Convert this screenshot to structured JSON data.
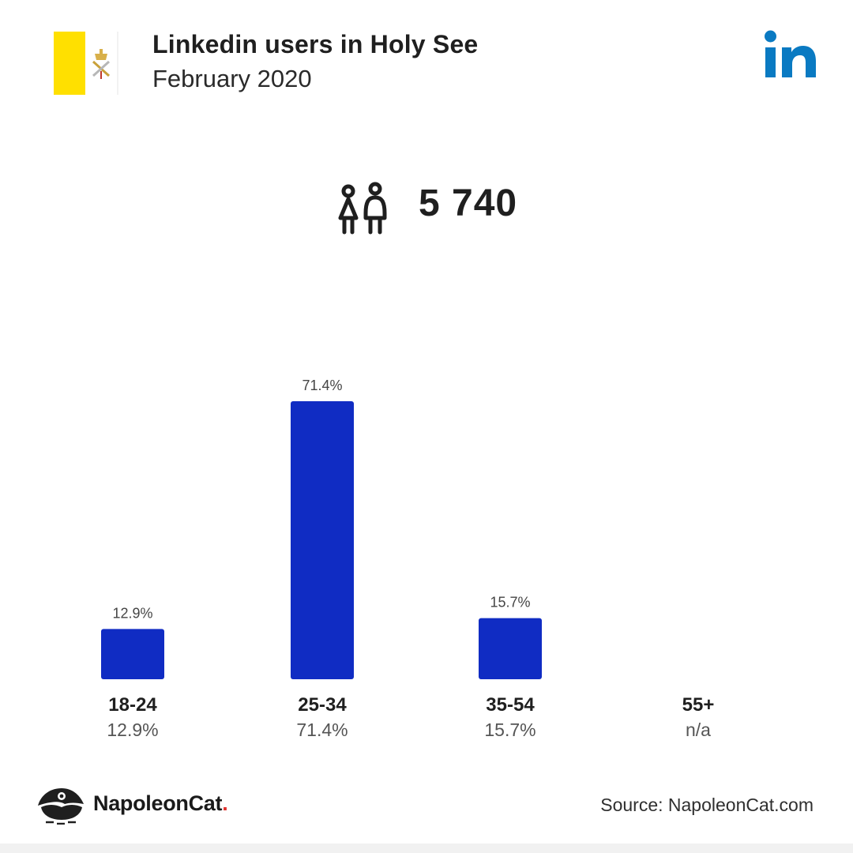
{
  "header": {
    "title": "Linkedin users in Holy See",
    "subtitle": "February 2020"
  },
  "colors": {
    "bar": "#102cc3",
    "linkedin": "#0a7ac2",
    "flag_yellow": "#ffe000",
    "text": "#222222",
    "muted": "#555555",
    "brand_dot": "#e0312d"
  },
  "icons": {
    "flag": "holy-see-flag-icon",
    "linkedin": "linkedin-logo-icon",
    "users": "users-icon",
    "brand": "napoleoncat-logo-icon"
  },
  "total_users": "5 740",
  "chart_data": {
    "type": "bar",
    "categories": [
      "18-24",
      "25-34",
      "35-54",
      "55+"
    ],
    "values": [
      12.9,
      71.4,
      15.7,
      null
    ],
    "bar_labels": [
      "12.9%",
      "71.4%",
      "15.7%",
      ""
    ],
    "category_value_labels": [
      "12.9%",
      "71.4%",
      "15.7%",
      "n/a"
    ],
    "ylim": [
      0,
      71.4
    ],
    "grid": false,
    "xlabel": "",
    "ylabel": ""
  },
  "footer": {
    "brand": "NapoleonCat",
    "brand_dot": ".",
    "source": "Source: NapoleonCat.com"
  }
}
